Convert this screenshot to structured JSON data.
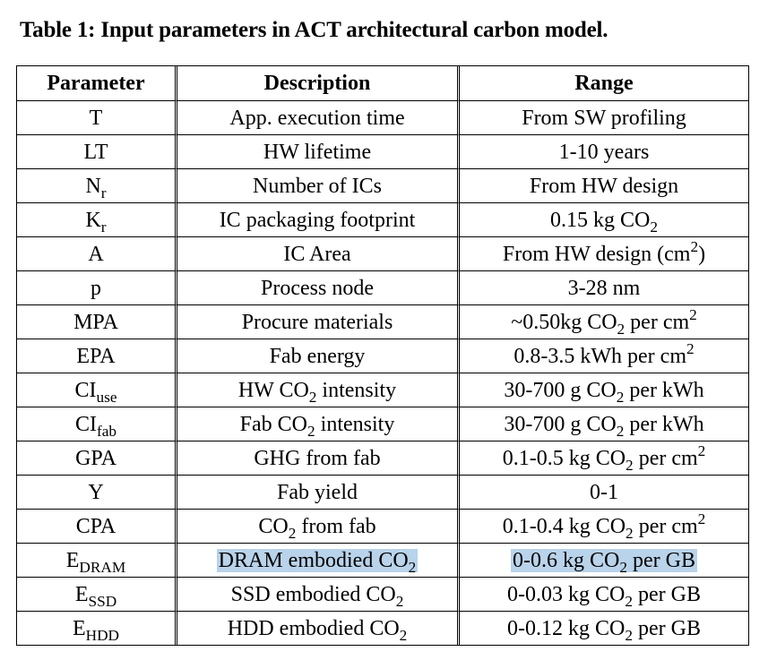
{
  "caption": "Table 1: Input parameters in ACT architectural carbon model.",
  "headers": {
    "parameter": "Parameter",
    "description": "Description",
    "range": "Range"
  },
  "rows": [
    {
      "param": "T",
      "param_sub": "",
      "desc": "App. execution time",
      "desc_sub": "",
      "desc_post": "",
      "range": "From SW profiling",
      "range_sub": "",
      "range_mid": "",
      "range_sup": "",
      "range_post": ""
    },
    {
      "param": "LT",
      "param_sub": "",
      "desc": "HW lifetime",
      "desc_sub": "",
      "desc_post": "",
      "range": "1-10 years",
      "range_sub": "",
      "range_mid": "",
      "range_sup": "",
      "range_post": ""
    },
    {
      "param": "N",
      "param_sub": "r",
      "desc": "Number of ICs",
      "desc_sub": "",
      "desc_post": "",
      "range": "From HW design",
      "range_sub": "",
      "range_mid": "",
      "range_sup": "",
      "range_post": ""
    },
    {
      "param": "K",
      "param_sub": "r",
      "desc": "IC packaging footprint",
      "desc_sub": "",
      "desc_post": "",
      "range": "0.15 kg CO",
      "range_sub": "2",
      "range_mid": "",
      "range_sup": "",
      "range_post": ""
    },
    {
      "param": "A",
      "param_sub": "",
      "desc": "IC Area",
      "desc_sub": "",
      "desc_post": "",
      "range": "From HW design (cm",
      "range_sub": "",
      "range_mid": "",
      "range_sup": "2",
      "range_post": ")"
    },
    {
      "param": "p",
      "param_sub": "",
      "desc": "Process node",
      "desc_sub": "",
      "desc_post": "",
      "range": "3-28 nm",
      "range_sub": "",
      "range_mid": "",
      "range_sup": "",
      "range_post": ""
    },
    {
      "param": "MPA",
      "param_sub": "",
      "desc": "Procure materials",
      "desc_sub": "",
      "desc_post": "",
      "range": "~0.50kg CO",
      "range_sub": "2",
      "range_mid": " per cm",
      "range_sup": "2",
      "range_post": ""
    },
    {
      "param": "EPA",
      "param_sub": "",
      "desc": "Fab energy",
      "desc_sub": "",
      "desc_post": "",
      "range": "0.8-3.5 kWh per cm",
      "range_sub": "",
      "range_mid": "",
      "range_sup": "2",
      "range_post": ""
    },
    {
      "param": "CI",
      "param_sub": "use",
      "desc": "HW CO",
      "desc_sub": "2",
      "desc_post": " intensity",
      "range": "30-700 g CO",
      "range_sub": "2",
      "range_mid": " per kWh",
      "range_sup": "",
      "range_post": ""
    },
    {
      "param": "CI",
      "param_sub": "fab",
      "desc": "Fab CO",
      "desc_sub": "2",
      "desc_post": " intensity",
      "range": "30-700 g CO",
      "range_sub": "2",
      "range_mid": " per kWh",
      "range_sup": "",
      "range_post": ""
    },
    {
      "param": "GPA",
      "param_sub": "",
      "desc": "GHG from fab",
      "desc_sub": "",
      "desc_post": "",
      "range": "0.1-0.5 kg CO",
      "range_sub": "2",
      "range_mid": " per cm",
      "range_sup": "2",
      "range_post": ""
    },
    {
      "param": "Y",
      "param_sub": "",
      "desc": "Fab yield",
      "desc_sub": "",
      "desc_post": "",
      "range": "0-1",
      "range_sub": "",
      "range_mid": "",
      "range_sup": "",
      "range_post": ""
    },
    {
      "param": "CPA",
      "param_sub": "",
      "desc": "CO",
      "desc_sub": "2",
      "desc_post": " from fab",
      "range": "0.1-0.4 kg CO",
      "range_sub": "2",
      "range_mid": " per cm",
      "range_sup": "2",
      "range_post": ""
    },
    {
      "param": "E",
      "param_sub": "DRAM",
      "desc": "DRAM embodied CO",
      "desc_sub": "2",
      "desc_post": "",
      "range": "0-0.6 kg CO",
      "range_sub": "2",
      "range_mid": " per GB",
      "range_sup": "",
      "range_post": ""
    },
    {
      "param": "E",
      "param_sub": "SSD",
      "desc": "SSD embodied CO",
      "desc_sub": "2",
      "desc_post": "",
      "range": "0-0.03 kg CO",
      "range_sub": "2",
      "range_mid": " per GB",
      "range_sup": "",
      "range_post": ""
    },
    {
      "param": "E",
      "param_sub": "HDD",
      "desc": "HDD embodied CO",
      "desc_sub": "2",
      "desc_post": "",
      "range": "0-0.12 kg CO",
      "range_sub": "2",
      "range_mid": " per GB",
      "range_sup": "",
      "range_post": ""
    }
  ],
  "highlight_row_index": 13,
  "highlight_color": "#b9d3ea"
}
